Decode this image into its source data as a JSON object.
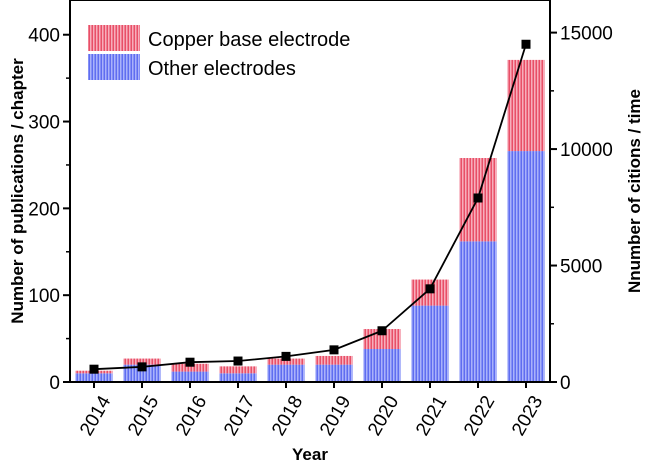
{
  "chart_data": {
    "type": "bar",
    "xlabel": "Year",
    "ylabel": "Number of publications / chapter",
    "y2label": "Nnumber of citions / time",
    "categories": [
      "2014",
      "2015",
      "2016",
      "2017",
      "2018",
      "2019",
      "2020",
      "2021",
      "2022",
      "2023"
    ],
    "series": [
      {
        "name": "Other electrodes",
        "type": "bar",
        "stacked": true,
        "axis": "left",
        "color": "#6f7cf0",
        "values": [
          10,
          20,
          12,
          10,
          20,
          20,
          38,
          88,
          162,
          266
        ]
      },
      {
        "name": "Copper base electrode",
        "type": "bar",
        "stacked": true,
        "axis": "left",
        "color": "#ea5d73",
        "values": [
          3,
          7,
          9,
          8,
          7,
          10,
          23,
          30,
          96,
          105
        ]
      },
      {
        "name": "",
        "type": "line",
        "axis": "right",
        "marker": "square",
        "color": "#000000",
        "values": [
          550,
          650,
          850,
          900,
          1100,
          1380,
          2200,
          4000,
          7900,
          14500
        ]
      }
    ],
    "ylim": [
      0,
      440
    ],
    "yticks": [
      0,
      100,
      200,
      300,
      400
    ],
    "y2lim": [
      0,
      16400
    ],
    "y2ticks": [
      0,
      5000,
      10000,
      15000
    ],
    "grid": false,
    "legend": "top-left"
  }
}
